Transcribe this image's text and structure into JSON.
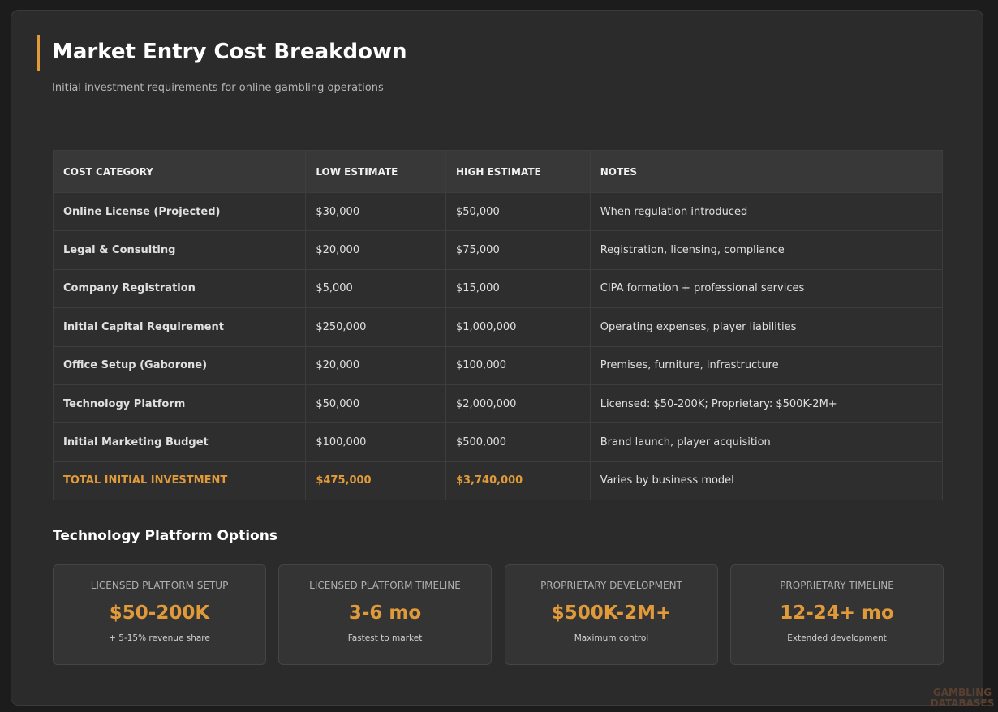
{
  "header": {
    "title": "Market Entry Cost Breakdown",
    "subtitle": "Initial investment requirements for online gambling operations"
  },
  "table": {
    "headers": [
      "COST CATEGORY",
      "LOW ESTIMATE",
      "HIGH ESTIMATE",
      "NOTES"
    ],
    "rows": [
      [
        "Online License (Projected)",
        "$30,000",
        "$50,000",
        "When regulation introduced"
      ],
      [
        "Legal & Consulting",
        "$20,000",
        "$75,000",
        "Registration, licensing, compliance"
      ],
      [
        "Company Registration",
        "$5,000",
        "$15,000",
        "CIPA formation + professional services"
      ],
      [
        "Initial Capital Requirement",
        "$250,000",
        "$1,000,000",
        "Operating expenses, player liabilities"
      ],
      [
        "Office Setup (Gaborone)",
        "$20,000",
        "$100,000",
        "Premises, furniture, infrastructure"
      ],
      [
        "Technology Platform",
        "$50,000",
        "$2,000,000",
        "Licensed: $50-200K; Proprietary: $500K-2M+"
      ],
      [
        "Initial Marketing Budget",
        "$100,000",
        "$500,000",
        "Brand launch, player acquisition"
      ],
      [
        "TOTAL INITIAL INVESTMENT",
        "$475,000",
        "$3,740,000",
        "Varies by business model"
      ]
    ]
  },
  "section": {
    "title": "Technology Platform Options",
    "cards": [
      {
        "label": "LICENSED PLATFORM SETUP",
        "value": "$50-200K",
        "note": "+ 5-15% revenue share"
      },
      {
        "label": "LICENSED PLATFORM TIMELINE",
        "value": "3-6 mo",
        "note": "Fastest to market"
      },
      {
        "label": "PROPRIETARY DEVELOPMENT",
        "value": "$500K-2M+",
        "note": "Maximum control"
      },
      {
        "label": "PROPRIETARY TIMELINE",
        "value": "12-24+ mo",
        "note": "Extended development"
      }
    ]
  },
  "watermark": "GAMBLING DATABASES"
}
